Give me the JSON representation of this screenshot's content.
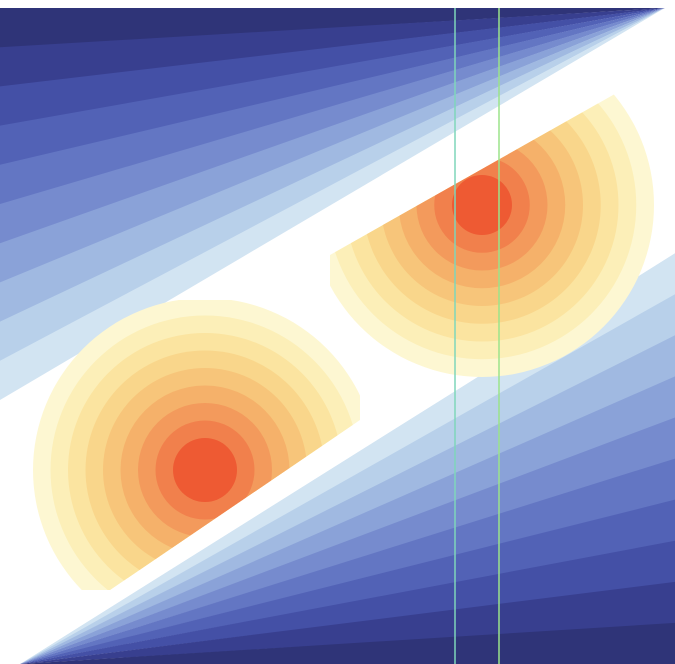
{
  "artwork": {
    "palette": {
      "background": "#ffffff",
      "cool_bands": [
        "#2f3478",
        "#383f8f",
        "#4450a6",
        "#5262b6",
        "#6376c3",
        "#768bce",
        "#8aa2d8",
        "#a0b9e1",
        "#b8d0ea",
        "#d2e4f2"
      ],
      "warm_rings": [
        "#fdf7d2",
        "#fcefb8",
        "#fbe4a0",
        "#f9d68b",
        "#f7c57a",
        "#f5b16a",
        "#f39a5c",
        "#f1804c"
      ],
      "warm_core": "#ee5a33",
      "stripe_colors": [
        "#7fd6ba",
        "#9be38a"
      ]
    },
    "band_count": 10,
    "ring_count": 8
  }
}
